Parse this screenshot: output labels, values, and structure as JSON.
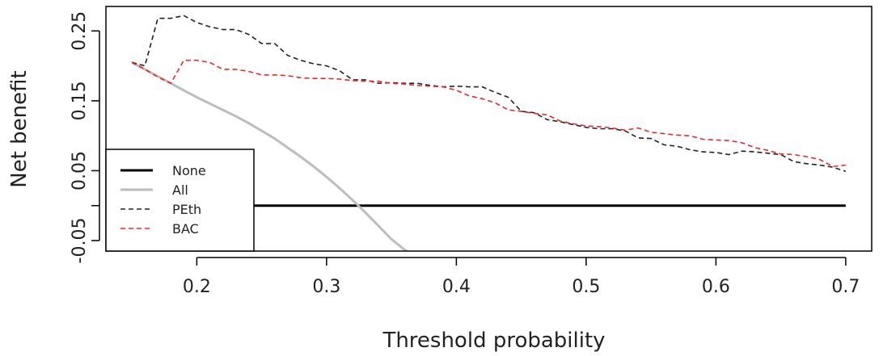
{
  "chart_data": {
    "type": "line",
    "xlabel": "Threshold probability",
    "ylabel": "Net benefit",
    "xlim": [
      0.13,
      0.72
    ],
    "ylim": [
      -0.065,
      0.285
    ],
    "xticks": [
      0.2,
      0.3,
      0.4,
      0.5,
      0.6,
      0.7
    ],
    "xtick_labels": [
      "0.2",
      "0.3",
      "0.4",
      "0.5",
      "0.6",
      "0.7"
    ],
    "yticks": [
      -0.05,
      0.0,
      0.05,
      0.15,
      0.25
    ],
    "ytick_labels": [
      "-0.05",
      "",
      "0.05",
      "0.15",
      "0.25"
    ],
    "legend_position": "bottom-left",
    "series": [
      {
        "name": "None",
        "color": "#000000",
        "style": "solid",
        "x": [
          0.15,
          0.7
        ],
        "y": [
          0.0,
          0.0
        ]
      },
      {
        "name": "All",
        "color": "#bdbdbd",
        "style": "solid",
        "x": [
          0.15,
          0.16,
          0.17,
          0.18,
          0.19,
          0.2,
          0.21,
          0.22,
          0.23,
          0.24,
          0.25,
          0.26,
          0.27,
          0.28,
          0.29,
          0.3,
          0.31,
          0.32,
          0.33,
          0.34,
          0.35,
          0.36,
          0.362
        ],
        "y": [
          0.205,
          0.195,
          0.185,
          0.175,
          0.165,
          0.155,
          0.146,
          0.137,
          0.128,
          0.118,
          0.107,
          0.096,
          0.083,
          0.07,
          0.056,
          0.041,
          0.025,
          0.008,
          -0.01,
          -0.029,
          -0.048,
          -0.063,
          -0.065
        ]
      },
      {
        "name": "PEth",
        "color": "#222222",
        "style": "dashed",
        "x": [
          0.15,
          0.16,
          0.17,
          0.18,
          0.19,
          0.2,
          0.21,
          0.22,
          0.23,
          0.24,
          0.25,
          0.26,
          0.27,
          0.28,
          0.29,
          0.3,
          0.31,
          0.32,
          0.33,
          0.34,
          0.35,
          0.36,
          0.37,
          0.38,
          0.39,
          0.4,
          0.41,
          0.42,
          0.43,
          0.44,
          0.45,
          0.46,
          0.47,
          0.48,
          0.49,
          0.5,
          0.51,
          0.52,
          0.53,
          0.54,
          0.55,
          0.56,
          0.57,
          0.58,
          0.59,
          0.6,
          0.61,
          0.62,
          0.63,
          0.64,
          0.65,
          0.66,
          0.67,
          0.68,
          0.69,
          0.7
        ],
        "y": [
          0.205,
          0.2,
          0.268,
          0.268,
          0.272,
          0.262,
          0.256,
          0.252,
          0.252,
          0.245,
          0.232,
          0.232,
          0.215,
          0.208,
          0.203,
          0.2,
          0.193,
          0.18,
          0.18,
          0.175,
          0.176,
          0.175,
          0.175,
          0.172,
          0.17,
          0.171,
          0.17,
          0.17,
          0.162,
          0.155,
          0.135,
          0.133,
          0.123,
          0.12,
          0.116,
          0.112,
          0.11,
          0.11,
          0.107,
          0.097,
          0.096,
          0.087,
          0.085,
          0.08,
          0.077,
          0.076,
          0.073,
          0.078,
          0.077,
          0.075,
          0.073,
          0.063,
          0.06,
          0.058,
          0.055,
          0.049
        ]
      },
      {
        "name": "BAC",
        "color": "#e8282a",
        "style": "dashed",
        "x": [
          0.15,
          0.16,
          0.17,
          0.18,
          0.19,
          0.2,
          0.21,
          0.22,
          0.23,
          0.24,
          0.25,
          0.26,
          0.27,
          0.28,
          0.29,
          0.3,
          0.31,
          0.32,
          0.33,
          0.34,
          0.35,
          0.36,
          0.37,
          0.38,
          0.39,
          0.4,
          0.41,
          0.42,
          0.43,
          0.44,
          0.45,
          0.46,
          0.47,
          0.48,
          0.49,
          0.5,
          0.51,
          0.52,
          0.53,
          0.54,
          0.55,
          0.56,
          0.57,
          0.58,
          0.59,
          0.6,
          0.61,
          0.62,
          0.63,
          0.64,
          0.65,
          0.66,
          0.67,
          0.68,
          0.69,
          0.7
        ],
        "y": [
          0.205,
          0.195,
          0.184,
          0.175,
          0.208,
          0.208,
          0.205,
          0.195,
          0.195,
          0.192,
          0.187,
          0.187,
          0.186,
          0.183,
          0.182,
          0.182,
          0.181,
          0.179,
          0.178,
          0.178,
          0.175,
          0.174,
          0.172,
          0.171,
          0.17,
          0.165,
          0.157,
          0.153,
          0.147,
          0.137,
          0.135,
          0.132,
          0.13,
          0.121,
          0.117,
          0.114,
          0.113,
          0.111,
          0.108,
          0.111,
          0.105,
          0.103,
          0.101,
          0.1,
          0.095,
          0.094,
          0.093,
          0.09,
          0.083,
          0.079,
          0.074,
          0.073,
          0.07,
          0.066,
          0.056,
          0.058
        ]
      }
    ]
  }
}
